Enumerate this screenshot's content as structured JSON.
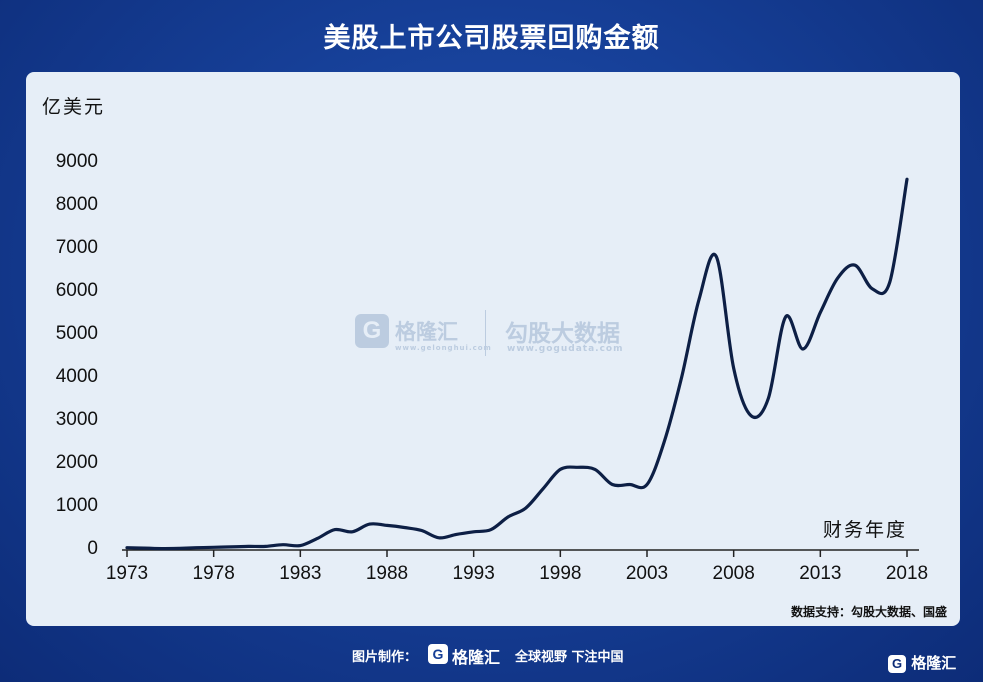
{
  "title": "美股上市公司股票回购金额",
  "footer": {
    "label": "图片制作：",
    "logo_mark": "G",
    "logo_name": "格隆汇",
    "slogan": "全球视野 下注中国"
  },
  "corner_logo": {
    "mark": "G",
    "name": "格隆汇"
  },
  "watermark": {
    "mark": "G",
    "name": "格隆汇",
    "url1": "www.gelonghui.com",
    "name2": "勾股大数据",
    "url2": "www.gogudata.com"
  },
  "chart_data": {
    "type": "line",
    "title": "美股上市公司股票回购金额",
    "ylabel": "亿美元",
    "xlabel": "财务年度",
    "source": "数据支持：勾股大数据、国盛",
    "ylim": [
      0,
      9000
    ],
    "xlim": [
      1973,
      2018
    ],
    "yticks": [
      "0",
      "1000",
      "2000",
      "3000",
      "4000",
      "5000",
      "6000",
      "7000",
      "8000",
      "9000"
    ],
    "xticks": [
      "1973",
      "1978",
      "1983",
      "1988",
      "1993",
      "1998",
      "2003",
      "2008",
      "2013",
      "2018"
    ],
    "line_color": "#0d1f45",
    "grid": false,
    "series": [
      {
        "x": [
          1973,
          1974,
          1975,
          1976,
          1977,
          1978,
          1979,
          1980,
          1981,
          1982,
          1983,
          1984,
          1985,
          1986,
          1987,
          1988,
          1989,
          1990,
          1991,
          1992,
          1993,
          1994,
          1995,
          1996,
          1997,
          1998,
          1999,
          2000,
          2001,
          2002,
          2003,
          2004,
          2005,
          2006,
          2007,
          2008,
          2009,
          2010,
          2011,
          2012,
          2013,
          2014,
          2015,
          2016,
          2017,
          2018
        ],
        "y": [
          30,
          20,
          10,
          15,
          30,
          40,
          50,
          60,
          60,
          100,
          80,
          250,
          450,
          400,
          580,
          550,
          500,
          430,
          260,
          340,
          400,
          450,
          750,
          950,
          1400,
          1850,
          1900,
          1850,
          1500,
          1500,
          1500,
          2500,
          4000,
          5800,
          6800,
          4200,
          3100,
          3500,
          5400,
          4650,
          5500,
          6300,
          6600,
          6050,
          6200,
          8600
        ]
      }
    ]
  }
}
